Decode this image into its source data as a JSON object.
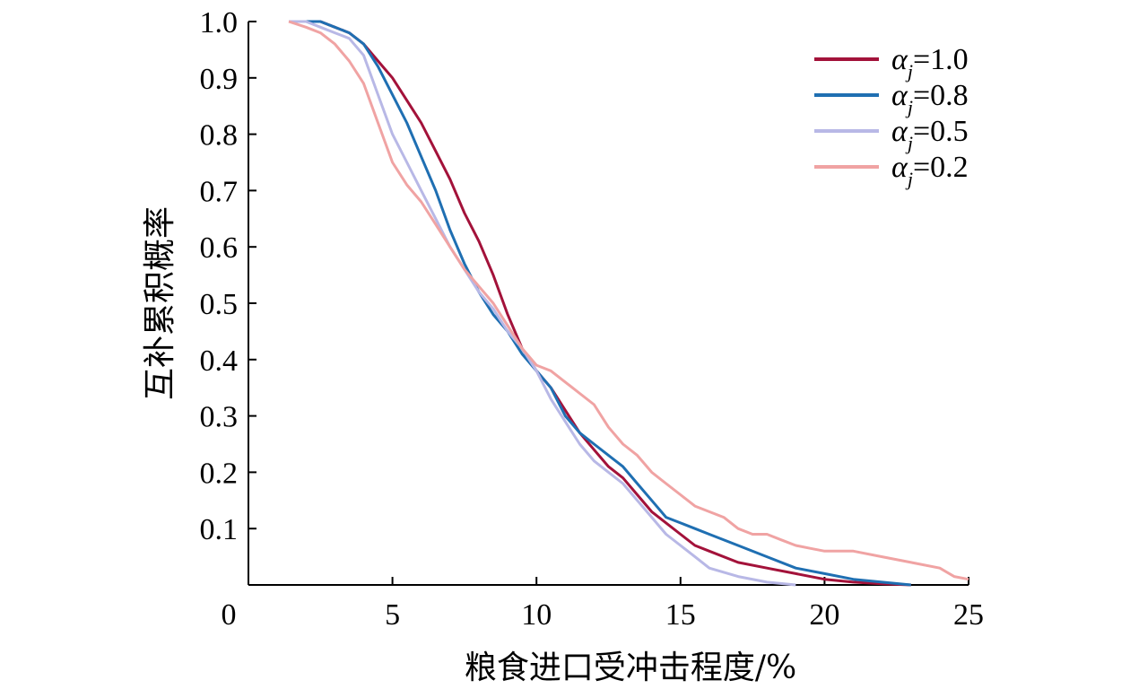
{
  "chart_data": {
    "type": "line",
    "xlabel": "粮食进口受冲击程度/%",
    "ylabel": "互补累积概率",
    "xlim": [
      0,
      25
    ],
    "ylim": [
      0,
      1.0
    ],
    "x_ticks": [
      "0",
      "5",
      "10",
      "15",
      "20",
      "25"
    ],
    "y_ticks": [
      "0.1",
      "0.2",
      "0.3",
      "0.4",
      "0.5",
      "0.6",
      "0.7",
      "0.8",
      "0.9",
      "1.0"
    ],
    "grid": false,
    "legend_position": "top-right",
    "series": [
      {
        "name": "αj=1.0",
        "legend_symbol": "α",
        "legend_sub": "j",
        "legend_value": "=1.0",
        "color": "#a3123a",
        "x": [
          1.4,
          2.0,
          2.5,
          3.0,
          3.5,
          4.0,
          4.5,
          5.0,
          5.5,
          6.0,
          6.5,
          7.0,
          7.5,
          8.0,
          8.5,
          9.0,
          9.5,
          10.0,
          10.5,
          11.0,
          11.5,
          12.0,
          12.5,
          13.0,
          13.5,
          14.0,
          14.5,
          15.0,
          15.5,
          16.0,
          17.0,
          18.0,
          19.0,
          20.0,
          21.0,
          22.0,
          23.0
        ],
        "y": [
          1.0,
          1.0,
          1.0,
          0.99,
          0.98,
          0.96,
          0.93,
          0.9,
          0.86,
          0.82,
          0.77,
          0.72,
          0.66,
          0.61,
          0.55,
          0.48,
          0.42,
          0.38,
          0.35,
          0.31,
          0.27,
          0.24,
          0.21,
          0.19,
          0.16,
          0.13,
          0.11,
          0.09,
          0.07,
          0.06,
          0.04,
          0.03,
          0.02,
          0.01,
          0.005,
          0.002,
          0.0
        ]
      },
      {
        "name": "αj=0.8",
        "legend_symbol": "α",
        "legend_sub": "j",
        "legend_value": "=0.8",
        "color": "#1f6fb2",
        "x": [
          1.4,
          2.0,
          2.5,
          3.0,
          3.5,
          4.0,
          4.5,
          5.0,
          5.5,
          6.0,
          6.5,
          7.0,
          7.5,
          8.0,
          8.5,
          9.0,
          9.5,
          10.0,
          10.5,
          11.0,
          11.5,
          12.0,
          12.5,
          13.0,
          13.5,
          14.0,
          14.5,
          15.0,
          15.5,
          16.0,
          17.0,
          18.0,
          19.0,
          20.0,
          21.0,
          22.0,
          23.0
        ],
        "y": [
          1.0,
          1.0,
          1.0,
          0.99,
          0.98,
          0.96,
          0.92,
          0.87,
          0.82,
          0.76,
          0.7,
          0.63,
          0.57,
          0.52,
          0.48,
          0.45,
          0.41,
          0.38,
          0.35,
          0.3,
          0.27,
          0.25,
          0.23,
          0.21,
          0.18,
          0.15,
          0.12,
          0.11,
          0.1,
          0.09,
          0.07,
          0.05,
          0.03,
          0.02,
          0.01,
          0.005,
          0.0
        ]
      },
      {
        "name": "αj=0.5",
        "legend_symbol": "α",
        "legend_sub": "j",
        "legend_value": "=0.5",
        "color": "#b8b8e6",
        "x": [
          1.4,
          2.0,
          2.5,
          3.0,
          3.5,
          4.0,
          4.5,
          5.0,
          5.5,
          6.0,
          6.5,
          7.0,
          7.5,
          8.0,
          8.5,
          9.0,
          9.5,
          10.0,
          10.5,
          11.0,
          11.5,
          12.0,
          12.5,
          13.0,
          13.5,
          14.0,
          14.5,
          15.0,
          15.5,
          16.0,
          17.0,
          18.0,
          19.0
        ],
        "y": [
          1.0,
          1.0,
          0.99,
          0.98,
          0.97,
          0.94,
          0.87,
          0.8,
          0.75,
          0.7,
          0.65,
          0.6,
          0.56,
          0.52,
          0.49,
          0.45,
          0.42,
          0.38,
          0.33,
          0.29,
          0.25,
          0.22,
          0.2,
          0.18,
          0.15,
          0.12,
          0.09,
          0.07,
          0.05,
          0.03,
          0.015,
          0.005,
          0.0
        ]
      },
      {
        "name": "αj=0.2",
        "legend_symbol": "α",
        "legend_sub": "j",
        "legend_value": "=0.2",
        "color": "#f0a3a3",
        "x": [
          1.4,
          2.0,
          2.5,
          3.0,
          3.5,
          4.0,
          4.5,
          5.0,
          5.5,
          6.0,
          6.5,
          7.0,
          7.5,
          8.0,
          8.5,
          9.0,
          9.5,
          10.0,
          10.5,
          11.0,
          11.5,
          12.0,
          12.5,
          13.0,
          13.5,
          14.0,
          14.5,
          15.0,
          15.5,
          16.0,
          16.5,
          17.0,
          17.5,
          18.0,
          18.5,
          19.0,
          19.5,
          20.0,
          21.0,
          22.0,
          23.0,
          24.0,
          24.5,
          25.0
        ],
        "y": [
          1.0,
          0.99,
          0.98,
          0.96,
          0.93,
          0.89,
          0.82,
          0.75,
          0.71,
          0.68,
          0.64,
          0.6,
          0.56,
          0.53,
          0.5,
          0.46,
          0.42,
          0.39,
          0.38,
          0.36,
          0.34,
          0.32,
          0.28,
          0.25,
          0.23,
          0.2,
          0.18,
          0.16,
          0.14,
          0.13,
          0.12,
          0.1,
          0.09,
          0.09,
          0.08,
          0.07,
          0.065,
          0.06,
          0.06,
          0.05,
          0.04,
          0.03,
          0.015,
          0.01
        ]
      }
    ]
  }
}
